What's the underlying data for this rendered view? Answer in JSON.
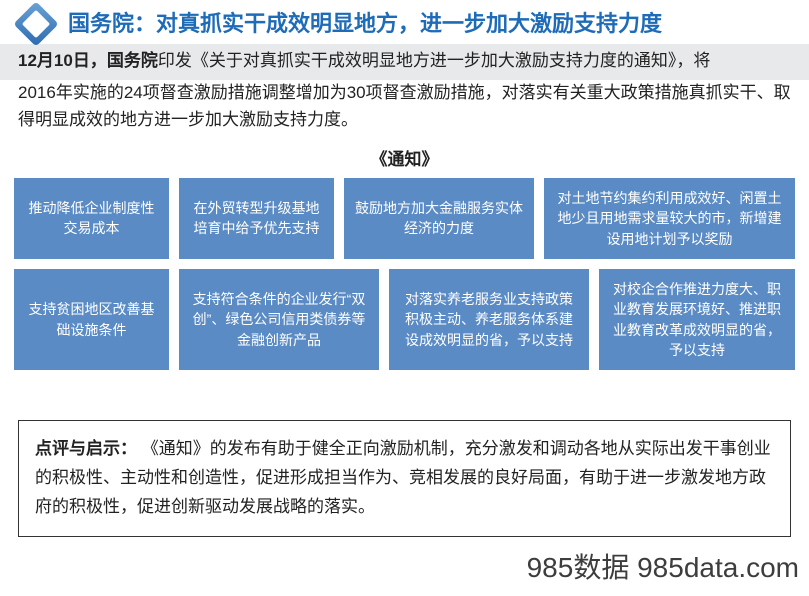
{
  "header": {
    "title": "国务院：对真抓实干成效明显地方，进一步加大激励支持力度"
  },
  "intro": {
    "bold_prefix": "12月10日，国务院",
    "line1_rest": "印发《关于对真抓实干成效明显地方进一步加大激励支持力度的通知》，将",
    "rest": "2016年实施的24项督查激励措施调整增加为30项督查激励措施，对落实有关重大政策措施真抓实干、取得明显成效的地方进一步加大激励支持力度。"
  },
  "notice_title": "《通知》",
  "boxes": {
    "row1": [
      "推动降低企业制度性交易成本",
      "在外贸转型升级基地培育中给予优先支持",
      "鼓励地方加大金融服务实体经济的力度",
      "对土地节约集约利用成效好、闲置土地少且用地需求量较大的市，新增建设用地计划予以奖励"
    ],
    "row2": [
      "支持贫困地区改善基础设施条件",
      "支持符合条件的企业发行“双创”、绿色公司信用类债券等金融创新产品",
      "对落实养老服务业支持政策积极主动、养老服务体系建设成效明显的省，予以支持",
      "对校企合作推进力度大、职业教育发展环境好、推进职业教育改革成效明显的省，予以支持"
    ],
    "box_bg": "#5a8bc4",
    "box_text_color": "#ffffff"
  },
  "comment": {
    "label": "点评与启示：",
    "text": "《通知》的发布有助于健全正向激励机制，充分激发和调动各地从实际出发干事创业的积极性、主动性和创造性，促进形成担当作为、竞相发展的良好局面，有助于进一步激发地方政府的积极性，促进创新驱动发展战略的落实。"
  },
  "watermark": "985数据 985data.com",
  "colors": {
    "title_color": "#1e6bb8",
    "intro_bg": "#e8e9eb",
    "border_color": "#333333"
  }
}
